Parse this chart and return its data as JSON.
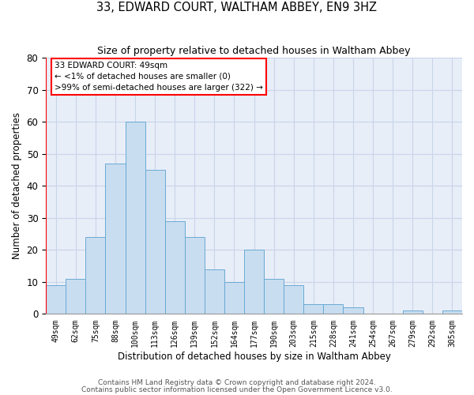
{
  "title": "33, EDWARD COURT, WALTHAM ABBEY, EN9 3HZ",
  "subtitle": "Size of property relative to detached houses in Waltham Abbey",
  "xlabel": "Distribution of detached houses by size in Waltham Abbey",
  "ylabel": "Number of detached properties",
  "categories": [
    "49sqm",
    "62sqm",
    "75sqm",
    "88sqm",
    "100sqm",
    "113sqm",
    "126sqm",
    "139sqm",
    "152sqm",
    "164sqm",
    "177sqm",
    "190sqm",
    "203sqm",
    "215sqm",
    "228sqm",
    "241sqm",
    "254sqm",
    "267sqm",
    "279sqm",
    "292sqm",
    "305sqm"
  ],
  "values": [
    9,
    11,
    24,
    47,
    60,
    45,
    29,
    24,
    14,
    10,
    20,
    11,
    9,
    3,
    3,
    2,
    0,
    0,
    1,
    0,
    1
  ],
  "bar_color": "#c8ddf0",
  "bar_edge_color": "#6aaad4",
  "annotation_text": "33 EDWARD COURT: 49sqm\n← <1% of detached houses are smaller (0)\n>99% of semi-detached houses are larger (322) →",
  "annotation_box_color": "white",
  "annotation_box_edge_color": "red",
  "ylim": [
    0,
    80
  ],
  "yticks": [
    0,
    10,
    20,
    30,
    40,
    50,
    60,
    70,
    80
  ],
  "grid_color": "#c8d4e8",
  "background_color": "#e8eef8",
  "footer_line1": "Contains HM Land Registry data © Crown copyright and database right 2024.",
  "footer_line2": "Contains public sector information licensed under the Open Government Licence v3.0."
}
